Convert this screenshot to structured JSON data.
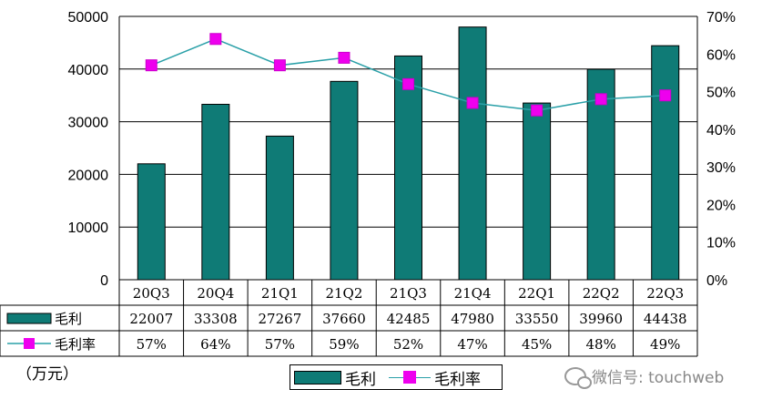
{
  "chart_data": {
    "type": "bar",
    "categories": [
      "20Q3",
      "20Q4",
      "21Q1",
      "21Q2",
      "21Q3",
      "21Q4",
      "22Q1",
      "22Q2",
      "22Q3"
    ],
    "series": [
      {
        "name": "毛利",
        "type": "bar",
        "axis": "left",
        "color": "#0f7b76",
        "values": [
          22007,
          33308,
          27267,
          37660,
          42485,
          47980,
          33550,
          39960,
          44438
        ]
      },
      {
        "name": "毛利率",
        "type": "line",
        "axis": "right",
        "line_color": "#2aa0a8",
        "marker_color": "#ee00ee",
        "values": [
          57,
          64,
          57,
          59,
          52,
          47,
          45,
          48,
          49
        ]
      }
    ],
    "table_rows": [
      {
        "label": "毛利",
        "cells": [
          "22007",
          "33308",
          "27267",
          "37660",
          "42485",
          "47980",
          "33550",
          "39960",
          "44438"
        ]
      },
      {
        "label": "毛利率",
        "cells": [
          "57%",
          "64%",
          "57%",
          "59%",
          "52%",
          "47%",
          "45%",
          "48%",
          "49%"
        ]
      }
    ],
    "left_axis": {
      "ylim": [
        0,
        50000
      ],
      "ticks": [
        "0",
        "10000",
        "20000",
        "30000",
        "40000",
        "50000"
      ]
    },
    "right_axis": {
      "ylim": [
        0,
        70
      ],
      "ticks": [
        "0%",
        "10%",
        "20%",
        "30%",
        "40%",
        "50%",
        "60%",
        "70%"
      ]
    },
    "grid": true,
    "legend_position": "bottom-center"
  },
  "unit_label": "（万元）",
  "legend": {
    "bar_label": "毛利",
    "line_label": "毛利率"
  },
  "watermark": "微信号: touchweb"
}
